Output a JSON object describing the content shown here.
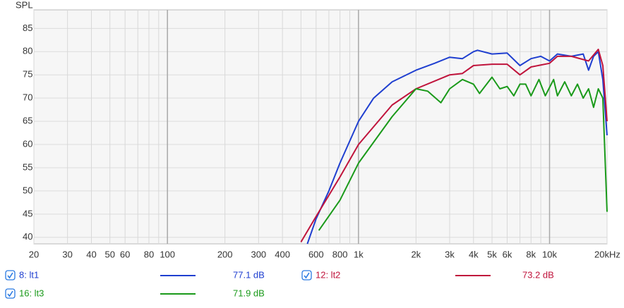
{
  "chart_data": {
    "type": "line",
    "ylabel": "SPL",
    "xscale": "log",
    "xlim": [
      20,
      20000
    ],
    "ylim": [
      38.6,
      89
    ],
    "yticks": [
      40,
      45,
      50,
      55,
      60,
      65,
      70,
      75,
      80,
      85
    ],
    "xticks": [
      20,
      30,
      40,
      50,
      60,
      80,
      100,
      200,
      300,
      400,
      600,
      800,
      {
        "value": 1000,
        "label": "1k"
      },
      {
        "value": 2000,
        "label": "2k"
      },
      {
        "value": 3000,
        "label": "3k"
      },
      {
        "value": 4000,
        "label": "4k"
      },
      {
        "value": 5000,
        "label": "5k"
      },
      {
        "value": 6000,
        "label": "6k"
      },
      {
        "value": 8000,
        "label": "8k"
      },
      {
        "value": 10000,
        "label": "10k"
      },
      {
        "value": 20000,
        "label": "20kHz"
      }
    ],
    "xminor": [
      70,
      90,
      500,
      700,
      900,
      7000,
      9000
    ],
    "grid": true,
    "series": [
      {
        "name": "8: lt1",
        "color": "#1f3fd0",
        "level": 77.1,
        "level_label": "77.1 dB",
        "x": [
          540,
          600,
          700,
          800,
          1000,
          1200,
          1500,
          2000,
          2500,
          3000,
          3500,
          4000,
          4200,
          5000,
          6000,
          7000,
          8000,
          9000,
          10000,
          11000,
          13000,
          15000,
          16000,
          17000,
          18000,
          19000,
          20000
        ],
        "values": [
          38.6,
          44,
          50,
          56,
          65,
          70,
          73.5,
          76,
          77.5,
          78.8,
          78.5,
          80,
          80.3,
          79.5,
          79.7,
          77,
          78.5,
          79,
          78,
          79.5,
          79,
          79.5,
          76,
          79,
          80,
          74,
          62
        ]
      },
      {
        "name": "12: lt2",
        "color": "#c0143c",
        "level": 73.2,
        "level_label": "73.2 dB",
        "x": [
          500,
          600,
          800,
          1000,
          1500,
          2000,
          3000,
          3500,
          4000,
          5000,
          6000,
          7000,
          8000,
          10000,
          11000,
          13000,
          16000,
          18000,
          19000,
          20000
        ],
        "values": [
          39,
          44.5,
          53,
          60,
          68.5,
          72,
          75,
          75.3,
          77,
          77.3,
          77.3,
          75,
          76.7,
          77.5,
          79,
          79,
          78,
          80.5,
          77,
          65
        ]
      },
      {
        "name": "16: lt3",
        "color": "#1a9a1a",
        "level": 71.9,
        "level_label": "71.9 dB",
        "x": [
          620,
          800,
          1000,
          1500,
          2000,
          2300,
          2700,
          3000,
          3500,
          4000,
          4300,
          5000,
          5500,
          6000,
          6500,
          7000,
          7500,
          8000,
          8800,
          9500,
          10500,
          11000,
          12000,
          13000,
          14000,
          15000,
          16000,
          17000,
          18000,
          19000,
          20000
        ],
        "values": [
          41.5,
          48,
          56,
          66,
          72,
          71.5,
          69,
          72,
          74,
          73,
          71,
          74.5,
          72,
          72.5,
          70.5,
          73,
          73,
          70.5,
          74,
          70.5,
          74,
          70.5,
          73.5,
          70.5,
          73,
          70,
          72,
          68,
          72,
          70,
          45.5
        ]
      }
    ]
  }
}
